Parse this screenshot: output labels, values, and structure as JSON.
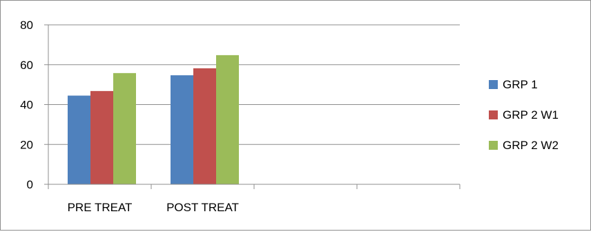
{
  "chart_data": {
    "type": "bar",
    "categories": [
      "PRE TREAT",
      "POST TREAT",
      "",
      ""
    ],
    "series": [
      {
        "name": "GRP 1",
        "color": "#4F81BD",
        "values": [
          44.5,
          54.7,
          null,
          null
        ]
      },
      {
        "name": "GRP 2 W1",
        "color": "#C0504D",
        "values": [
          46.8,
          58.2,
          null,
          null
        ]
      },
      {
        "name": "GRP 2 W2",
        "color": "#9BBB59",
        "values": [
          55.8,
          64.8,
          null,
          null
        ]
      }
    ],
    "y_ticks": [
      "0",
      "20",
      "40",
      "60",
      "80"
    ],
    "ylim": [
      0,
      80
    ],
    "grid": true,
    "legend_position": "right",
    "title": "",
    "xlabel": "",
    "ylabel": ""
  }
}
